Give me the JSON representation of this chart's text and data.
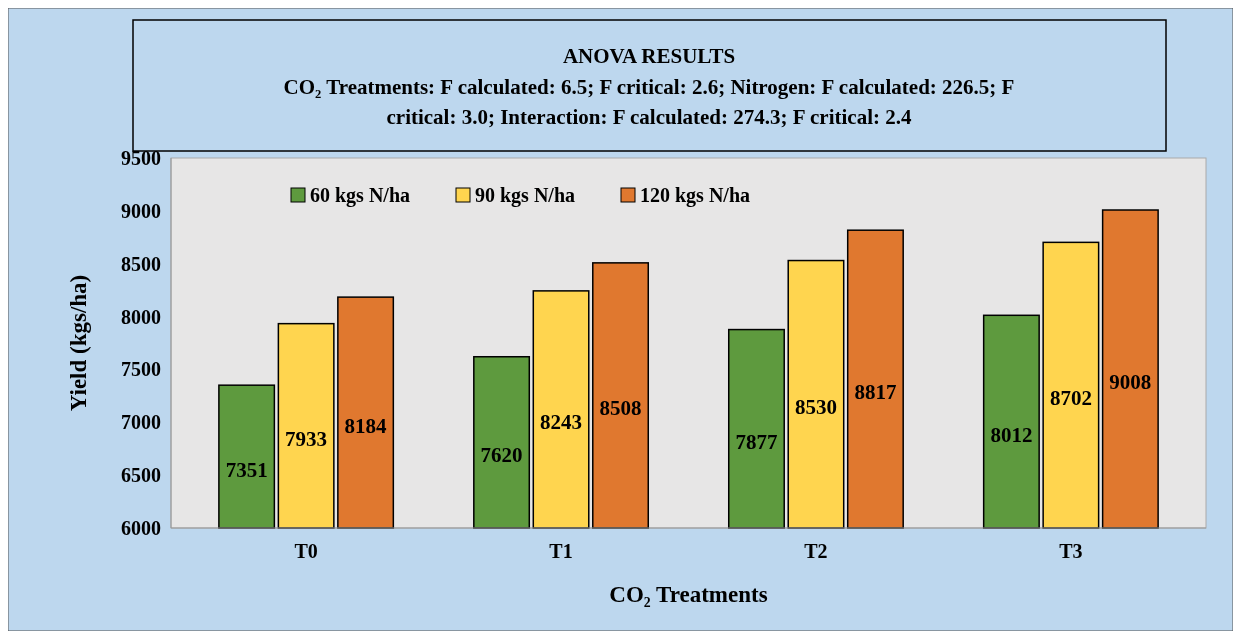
{
  "chart_data": {
    "type": "bar",
    "title": "ANOVA RESULTS",
    "subtitle": "CO₂ Treatments:  F calculated: 6.5; F critical: 2.6; Nitrogen:  F calculated: 226.5; F critical: 3.0; Interaction: F calculated: 274.3; F critical: 2.4",
    "xlabel": "CO₂ Treatments",
    "ylabel": "Yield (kgs/ha)",
    "categories": [
      "T0",
      "T1",
      "T2",
      "T3"
    ],
    "series": [
      {
        "name": "60 kgs N/ha",
        "color": "#5e9a3e",
        "values": [
          7351,
          7620,
          7877,
          8012
        ]
      },
      {
        "name": "90 kgs N/ha",
        "color": "#ffd54f",
        "values": [
          7933,
          8243,
          8530,
          8702
        ]
      },
      {
        "name": "120 kgs N/ha",
        "color": "#e0782f",
        "values": [
          8184,
          8508,
          8817,
          9008
        ]
      }
    ],
    "ylim": [
      6000,
      9500
    ],
    "yticks": [
      6000,
      6500,
      7000,
      7500,
      8000,
      8500,
      9000,
      9500
    ],
    "grid": false,
    "legend": "top left",
    "data_labels": true
  }
}
